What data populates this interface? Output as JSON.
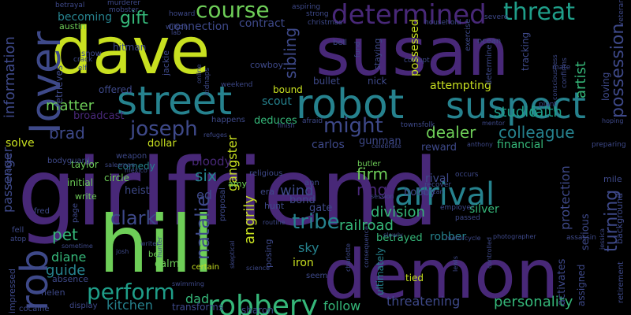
{
  "palette": {
    "background": "#000000",
    "purple": "#482878",
    "blue": "#3e4989",
    "teal": "#26828e",
    "cyan": "#1f9e89",
    "green": "#35b779",
    "lime": "#6ece58",
    "yellow": "#c8e020",
    "deep": "#440154"
  },
  "words": [
    {
      "text": "girlfriend",
      "color": "#482878"
    },
    {
      "text": "susan",
      "color": "#482878"
    },
    {
      "text": "dave",
      "color": "#c8e020"
    },
    {
      "text": "demon",
      "color": "#482878"
    },
    {
      "text": "hill",
      "color": "#6ece58"
    },
    {
      "text": "robot",
      "color": "#26828e"
    },
    {
      "text": "street",
      "color": "#26828e"
    },
    {
      "text": "suspect",
      "color": "#26828e"
    },
    {
      "text": "lover",
      "color": "#3e4989"
    },
    {
      "text": "rob",
      "color": "#3e4989"
    },
    {
      "text": "arrival",
      "color": "#26828e"
    },
    {
      "text": "robbery",
      "color": "#35b779"
    },
    {
      "text": "perform",
      "color": "#1f9e89"
    },
    {
      "text": "determined",
      "color": "#482878"
    },
    {
      "text": "threat",
      "color": "#1f9e89"
    },
    {
      "text": "course",
      "color": "#6ece58"
    },
    {
      "text": "joseph",
      "color": "#3e4989"
    },
    {
      "text": "might",
      "color": "#3e4989"
    },
    {
      "text": "tribe",
      "color": "#26828e"
    },
    {
      "text": "natalie",
      "color": "#3e4989"
    },
    {
      "text": "clark",
      "color": "#3e4989"
    },
    {
      "text": "colleague",
      "color": "#26828e"
    },
    {
      "text": "possession",
      "color": "#3e4989"
    },
    {
      "text": "gift",
      "color": "#35b779"
    },
    {
      "text": "matter",
      "color": "#6ece58"
    },
    {
      "text": "dealer",
      "color": "#6ece58"
    },
    {
      "text": "brad",
      "color": "#3e4989"
    },
    {
      "text": "firm",
      "color": "#6ece58"
    },
    {
      "text": "information",
      "color": "#3e4989"
    },
    {
      "text": "passenger",
      "color": "#3e4989"
    },
    {
      "text": "railroad",
      "color": "#35b779"
    },
    {
      "text": "division",
      "color": "#35b779"
    },
    {
      "text": "threatening",
      "color": "#3e4989"
    },
    {
      "text": "personality",
      "color": "#35b779"
    },
    {
      "text": "turning",
      "color": "#3e4989"
    },
    {
      "text": "sibling",
      "color": "#3e4989"
    },
    {
      "text": "studio",
      "color": "#1f9e89"
    },
    {
      "text": "faith",
      "color": "#1f9e89"
    },
    {
      "text": "artist",
      "color": "#35b779"
    },
    {
      "text": "angrily",
      "color": "#c8e020"
    },
    {
      "text": "gangster",
      "color": "#c8e020"
    },
    {
      "text": "pet",
      "color": "#35b779"
    },
    {
      "text": "six",
      "color": "#26828e"
    },
    {
      "text": "diane",
      "color": "#35b779"
    },
    {
      "text": "guide",
      "color": "#26828e"
    },
    {
      "text": "follow",
      "color": "#35b779"
    },
    {
      "text": "protection",
      "color": "#3e4989"
    },
    {
      "text": "ring",
      "color": "#482878"
    },
    {
      "text": "wind",
      "color": "#3e4989"
    },
    {
      "text": "dad",
      "color": "#35b779"
    },
    {
      "text": "kitchen",
      "color": "#26828e"
    },
    {
      "text": "carlos",
      "color": "#3e4989"
    },
    {
      "text": "robber",
      "color": "#26828e"
    },
    {
      "text": "silver",
      "color": "#35b779"
    },
    {
      "text": "iron",
      "color": "#c8e020"
    },
    {
      "text": "sky",
      "color": "#26828e"
    },
    {
      "text": "betrayed",
      "color": "#35b779"
    },
    {
      "text": "attempting",
      "color": "#c8e020"
    },
    {
      "text": "possessed",
      "color": "#c8e020"
    },
    {
      "text": "becoming",
      "color": "#26828e"
    },
    {
      "text": "connection",
      "color": "#3e4989"
    },
    {
      "text": "contract",
      "color": "#3e4989"
    },
    {
      "text": "scout",
      "color": "#26828e"
    },
    {
      "text": "deduces",
      "color": "#35b779"
    },
    {
      "text": "bound",
      "color": "#c8e020"
    },
    {
      "text": "financial",
      "color": "#35b779"
    },
    {
      "text": "reward",
      "color": "#3e4989"
    },
    {
      "text": "gunman",
      "color": "#3e4989"
    },
    {
      "text": "rival",
      "color": "#3e4989"
    },
    {
      "text": "serious",
      "color": "#3e4989"
    },
    {
      "text": "heist",
      "color": "#3e4989"
    },
    {
      "text": "ed",
      "color": "#3e4989"
    },
    {
      "text": "bloody",
      "color": "#482878"
    },
    {
      "text": "dollar",
      "color": "#c8e020"
    },
    {
      "text": "solve",
      "color": "#c8e020"
    },
    {
      "text": "sharon",
      "color": "#3e4989"
    },
    {
      "text": "transforms",
      "color": "#3e4989"
    },
    {
      "text": "tied",
      "color": "#c8e020"
    },
    {
      "text": "hitman",
      "color": "#3e4989"
    },
    {
      "text": "bullet",
      "color": "#3e4989"
    },
    {
      "text": "nick",
      "color": "#3e4989"
    },
    {
      "text": "offered",
      "color": "#3e4989"
    },
    {
      "text": "broadcast",
      "color": "#482878"
    },
    {
      "text": "taylor",
      "color": "#6ece58"
    },
    {
      "text": "comedy",
      "color": "#26828e"
    },
    {
      "text": "weapon",
      "color": "#3e4989"
    },
    {
      "text": "write",
      "color": "#6ece58"
    },
    {
      "text": "initial",
      "color": "#6ece58"
    },
    {
      "text": "circle",
      "color": "#6ece58"
    },
    {
      "text": "amy",
      "color": "#6ece58"
    },
    {
      "text": "gate",
      "color": "#3e4989"
    },
    {
      "text": "bond",
      "color": "#3e4989"
    },
    {
      "text": "butler",
      "color": "#6ece58"
    },
    {
      "text": "bobby",
      "color": "#3e4989"
    },
    {
      "text": "calm",
      "color": "#6ece58"
    },
    {
      "text": "bet",
      "color": "#6ece58"
    },
    {
      "text": "certain",
      "color": "#c8e020"
    },
    {
      "text": "ultimately",
      "color": "#26828e"
    },
    {
      "text": "activates",
      "color": "#3e4989"
    },
    {
      "text": "assigned",
      "color": "#3e4989"
    },
    {
      "text": "impressed",
      "color": "#3e4989"
    },
    {
      "text": "helen",
      "color": "#3e4989"
    },
    {
      "text": "absence",
      "color": "#3e4989"
    },
    {
      "text": "cocaine",
      "color": "#3e4989"
    },
    {
      "text": "display",
      "color": "#3e4989"
    },
    {
      "text": "seem",
      "color": "#3e4989"
    },
    {
      "text": "fell",
      "color": "#3e4989"
    },
    {
      "text": "fred",
      "color": "#3e4989"
    },
    {
      "text": "jackie",
      "color": "#3e4989"
    },
    {
      "text": "cowboy",
      "color": "#3e4989"
    },
    {
      "text": "austin",
      "color": "#6ece58"
    },
    {
      "text": "retrieves",
      "color": "#3e4989"
    },
    {
      "text": "happens",
      "color": "#3e4989"
    },
    {
      "text": "bodyguard",
      "color": "#3e4989"
    },
    {
      "text": "staying",
      "color": "#3e4989"
    },
    {
      "text": "ocean",
      "color": "#3e4989"
    },
    {
      "text": "loving",
      "color": "#3e4989"
    },
    {
      "text": "tracking",
      "color": "#3e4989"
    },
    {
      "text": "exercise",
      "color": "#3e4989"
    },
    {
      "text": "page",
      "color": "#3e4989"
    },
    {
      "text": "proposal",
      "color": "#3e4989"
    },
    {
      "text": "era",
      "color": "#3e4989"
    },
    {
      "text": "hunt",
      "color": "#3e4989"
    },
    {
      "text": "posing",
      "color": "#3e4989"
    },
    {
      "text": "mile",
      "color": "#3e4989"
    },
    {
      "text": "background",
      "color": "#3e4989"
    },
    {
      "text": "retirement",
      "color": "#3e4989"
    },
    {
      "text": "snow",
      "color": "#3e4989"
    },
    {
      "text": "mobster",
      "color": "#3e4989"
    },
    {
      "text": "betrayal",
      "color": "#3e4989"
    },
    {
      "text": "murderer",
      "color": "#3e4989"
    },
    {
      "text": "howard",
      "color": "#3e4989"
    },
    {
      "text": "wilson",
      "color": "#3e4989"
    },
    {
      "text": "aspiring",
      "color": "#3e4989"
    },
    {
      "text": "strong",
      "color": "#3e4989"
    },
    {
      "text": "christmas",
      "color": "#3e4989"
    },
    {
      "text": "household",
      "color": "#3e4989"
    },
    {
      "text": "severe",
      "color": "#3e4989"
    },
    {
      "text": "determine",
      "color": "#3e4989"
    },
    {
      "text": "veteran",
      "color": "#3e4989"
    },
    {
      "text": "fund",
      "color": "#3e4989"
    },
    {
      "text": "corrupt",
      "color": "#3e4989"
    },
    {
      "text": "kidnaps",
      "color": "#3e4989"
    },
    {
      "text": "online",
      "color": "#3e4989"
    },
    {
      "text": "lab",
      "color": "#3e4989"
    },
    {
      "text": "crack",
      "color": "#3e4989"
    },
    {
      "text": "elf",
      "color": "#3e4989"
    },
    {
      "text": "mate",
      "color": "#3e4989"
    },
    {
      "text": "plant",
      "color": "#3e4989"
    },
    {
      "text": "consciousness",
      "color": "#3e4989"
    },
    {
      "text": "confirms",
      "color": "#3e4989"
    },
    {
      "text": "hoping",
      "color": "#3e4989"
    },
    {
      "text": "weekend",
      "color": "#3e4989"
    },
    {
      "text": "afraid",
      "color": "#3e4989"
    },
    {
      "text": "finish",
      "color": "#3e4989"
    },
    {
      "text": "townsfolk",
      "color": "#3e4989"
    },
    {
      "text": "mentor",
      "color": "#3e4989"
    },
    {
      "text": "celebrate",
      "color": "#3e4989"
    },
    {
      "text": "anthony",
      "color": "#3e4989"
    },
    {
      "text": "preparing",
      "color": "#3e4989"
    },
    {
      "text": "salesman",
      "color": "#3e4989"
    },
    {
      "text": "mexico",
      "color": "#3e4989"
    },
    {
      "text": "refuges",
      "color": "#3e4989"
    },
    {
      "text": "religious",
      "color": "#3e4989"
    },
    {
      "text": "ann",
      "color": "#3e4989"
    },
    {
      "text": "occurs",
      "color": "#3e4989"
    },
    {
      "text": "recover",
      "color": "#3e4989"
    },
    {
      "text": "african",
      "color": "#3e4989"
    },
    {
      "text": "session",
      "color": "#3e4989"
    },
    {
      "text": "employer",
      "color": "#3e4989"
    },
    {
      "text": "passed",
      "color": "#3e4989"
    },
    {
      "text": "slowly",
      "color": "#3e4989"
    },
    {
      "text": "motorcycle",
      "color": "#3e4989"
    },
    {
      "text": "photographer",
      "color": "#3e4989"
    },
    {
      "text": "assassin",
      "color": "#3e4989"
    },
    {
      "text": "jessica",
      "color": "#3e4989"
    },
    {
      "text": "develops",
      "color": "#3e4989"
    },
    {
      "text": "atop",
      "color": "#3e4989"
    },
    {
      "text": "sometime",
      "color": "#3e4989"
    },
    {
      "text": "josh",
      "color": "#3e4989"
    },
    {
      "text": "writer",
      "color": "#3e4989"
    },
    {
      "text": "hunter",
      "color": "#3e4989"
    },
    {
      "text": "swimming",
      "color": "#3e4989"
    },
    {
      "text": "skeptical",
      "color": "#3e4989"
    },
    {
      "text": "science",
      "color": "#3e4989"
    },
    {
      "text": "consequence",
      "color": "#3e4989"
    },
    {
      "text": "routine",
      "color": "#3e4989"
    },
    {
      "text": "charlotte",
      "color": "#3e4989"
    },
    {
      "text": "lewis",
      "color": "#3e4989"
    },
    {
      "text": "controlled",
      "color": "#3e4989"
    },
    {
      "text": "bell",
      "color": "#3e4989"
    }
  ]
}
